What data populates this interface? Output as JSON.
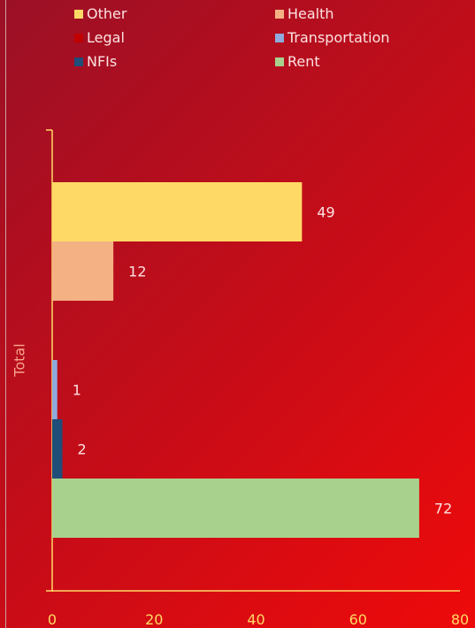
{
  "chart_data": {
    "type": "bar",
    "orientation": "horizontal",
    "ylabel": "Total",
    "xlim": [
      0,
      80
    ],
    "x_ticks": [
      "0",
      "20",
      "40",
      "60",
      "80"
    ],
    "grid": false,
    "legend_position": "top",
    "series": [
      {
        "name": "Other",
        "value": 49,
        "label": "49",
        "color": "#ffd966"
      },
      {
        "name": "Health",
        "value": 12,
        "label": "12",
        "color": "#f4b183"
      },
      {
        "name": "Legal",
        "value": 0,
        "label": "",
        "color": "#c00000"
      },
      {
        "name": "Transportation",
        "value": 1,
        "label": "1",
        "color": "#8faadc"
      },
      {
        "name": "NFIs",
        "value": 2,
        "label": "2",
        "color": "#1f4e79"
      },
      {
        "name": "Rent",
        "value": 72,
        "label": "72",
        "color": "#a9d18e"
      }
    ],
    "axis_color": "#ffd966",
    "label_color": "#fde2e2"
  }
}
